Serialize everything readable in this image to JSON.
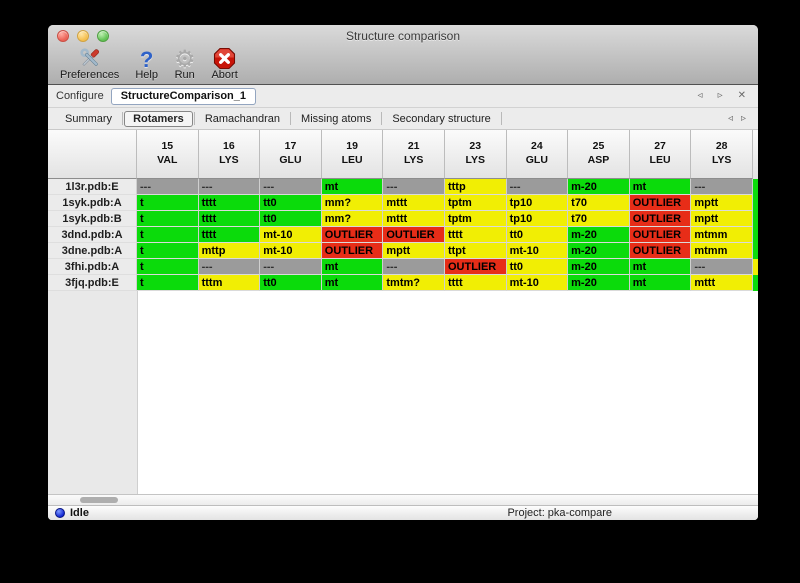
{
  "window": {
    "title": "Structure comparison"
  },
  "toolbar": {
    "buttons": [
      {
        "label": "Preferences",
        "icon": "preferences-tools-icon"
      },
      {
        "label": "Help",
        "icon": "help-question-icon"
      },
      {
        "label": "Run",
        "icon": "run-gear-icon"
      },
      {
        "label": "Abort",
        "icon": "abort-stop-icon"
      }
    ]
  },
  "configure": {
    "label": "Configure",
    "value": "StructureComparison_1"
  },
  "nav_icons": {
    "prev": "◃",
    "next": "▹",
    "close": "✕"
  },
  "tabs": {
    "active": "Rotamers",
    "items": [
      "Summary",
      "Rotamers",
      "Ramachandran",
      "Missing atoms",
      "Secondary structure"
    ]
  },
  "rotamer_table": {
    "status_colors": {
      "favored": "#0bdb0b",
      "allowed": "#f1ee04",
      "outlier": "#e72d18",
      "missing": "#9b9b9b"
    },
    "columns": [
      {
        "num": "15",
        "res": "VAL"
      },
      {
        "num": "16",
        "res": "LYS"
      },
      {
        "num": "17",
        "res": "GLU"
      },
      {
        "num": "19",
        "res": "LEU"
      },
      {
        "num": "21",
        "res": "LYS"
      },
      {
        "num": "23",
        "res": "LYS"
      },
      {
        "num": "24",
        "res": "GLU"
      },
      {
        "num": "25",
        "res": "ASP"
      },
      {
        "num": "27",
        "res": "LEU"
      },
      {
        "num": "28",
        "res": "LYS"
      }
    ],
    "rows": [
      {
        "label": "1l3r.pdb:E",
        "edge": "favored",
        "cells": [
          {
            "text": "---",
            "status": "missing"
          },
          {
            "text": "---",
            "status": "missing"
          },
          {
            "text": "---",
            "status": "missing"
          },
          {
            "text": "mt",
            "status": "favored"
          },
          {
            "text": "---",
            "status": "missing"
          },
          {
            "text": "tttp",
            "status": "allowed"
          },
          {
            "text": "---",
            "status": "missing"
          },
          {
            "text": "m-20",
            "status": "favored"
          },
          {
            "text": "mt",
            "status": "favored"
          },
          {
            "text": "---",
            "status": "missing"
          }
        ]
      },
      {
        "label": "1syk.pdb:A",
        "edge": "favored",
        "cells": [
          {
            "text": "t",
            "status": "favored"
          },
          {
            "text": "tttt",
            "status": "favored"
          },
          {
            "text": "tt0",
            "status": "favored"
          },
          {
            "text": "mm?",
            "status": "allowed"
          },
          {
            "text": "mttt",
            "status": "allowed"
          },
          {
            "text": "tptm",
            "status": "allowed"
          },
          {
            "text": "tp10",
            "status": "allowed"
          },
          {
            "text": "t70",
            "status": "allowed"
          },
          {
            "text": "OUTLIER",
            "status": "outlier"
          },
          {
            "text": "mptt",
            "status": "allowed"
          }
        ]
      },
      {
        "label": "1syk.pdb:B",
        "edge": "favored",
        "cells": [
          {
            "text": "t",
            "status": "favored"
          },
          {
            "text": "tttt",
            "status": "favored"
          },
          {
            "text": "tt0",
            "status": "favored"
          },
          {
            "text": "mm?",
            "status": "allowed"
          },
          {
            "text": "mttt",
            "status": "allowed"
          },
          {
            "text": "tptm",
            "status": "allowed"
          },
          {
            "text": "tp10",
            "status": "allowed"
          },
          {
            "text": "t70",
            "status": "allowed"
          },
          {
            "text": "OUTLIER",
            "status": "outlier"
          },
          {
            "text": "mptt",
            "status": "allowed"
          }
        ]
      },
      {
        "label": "3dnd.pdb:A",
        "edge": "favored",
        "cells": [
          {
            "text": "t",
            "status": "favored"
          },
          {
            "text": "tttt",
            "status": "favored"
          },
          {
            "text": "mt-10",
            "status": "allowed"
          },
          {
            "text": "OUTLIER",
            "status": "outlier"
          },
          {
            "text": "OUTLIER",
            "status": "outlier"
          },
          {
            "text": "tttt",
            "status": "allowed"
          },
          {
            "text": "tt0",
            "status": "allowed"
          },
          {
            "text": "m-20",
            "status": "favored"
          },
          {
            "text": "OUTLIER",
            "status": "outlier"
          },
          {
            "text": "mtmm",
            "status": "allowed"
          }
        ]
      },
      {
        "label": "3dne.pdb:A",
        "edge": "favored",
        "cells": [
          {
            "text": "t",
            "status": "favored"
          },
          {
            "text": "mttp",
            "status": "allowed"
          },
          {
            "text": "mt-10",
            "status": "allowed"
          },
          {
            "text": "OUTLIER",
            "status": "outlier"
          },
          {
            "text": "mptt",
            "status": "allowed"
          },
          {
            "text": "ttpt",
            "status": "allowed"
          },
          {
            "text": "mt-10",
            "status": "allowed"
          },
          {
            "text": "m-20",
            "status": "favored"
          },
          {
            "text": "OUTLIER",
            "status": "outlier"
          },
          {
            "text": "mtmm",
            "status": "allowed"
          }
        ]
      },
      {
        "label": "3fhi.pdb:A",
        "edge": "allowed",
        "cells": [
          {
            "text": "t",
            "status": "favored"
          },
          {
            "text": "---",
            "status": "missing"
          },
          {
            "text": "---",
            "status": "missing"
          },
          {
            "text": "mt",
            "status": "favored"
          },
          {
            "text": "---",
            "status": "missing"
          },
          {
            "text": "OUTLIER",
            "status": "outlier"
          },
          {
            "text": "tt0",
            "status": "allowed"
          },
          {
            "text": "m-20",
            "status": "favored"
          },
          {
            "text": "mt",
            "status": "favored"
          },
          {
            "text": "---",
            "status": "missing"
          }
        ]
      },
      {
        "label": "3fjq.pdb:E",
        "edge": "favored",
        "cells": [
          {
            "text": "t",
            "status": "favored"
          },
          {
            "text": "tttm",
            "status": "allowed"
          },
          {
            "text": "tt0",
            "status": "favored"
          },
          {
            "text": "mt",
            "status": "favored"
          },
          {
            "text": "tmtm?",
            "status": "allowed"
          },
          {
            "text": "tttt",
            "status": "allowed"
          },
          {
            "text": "mt-10",
            "status": "allowed"
          },
          {
            "text": "m-20",
            "status": "favored"
          },
          {
            "text": "mt",
            "status": "favored"
          },
          {
            "text": "mttt",
            "status": "allowed"
          }
        ]
      }
    ]
  },
  "statusbar": {
    "status": "Idle",
    "project": "Project: pka-compare"
  }
}
